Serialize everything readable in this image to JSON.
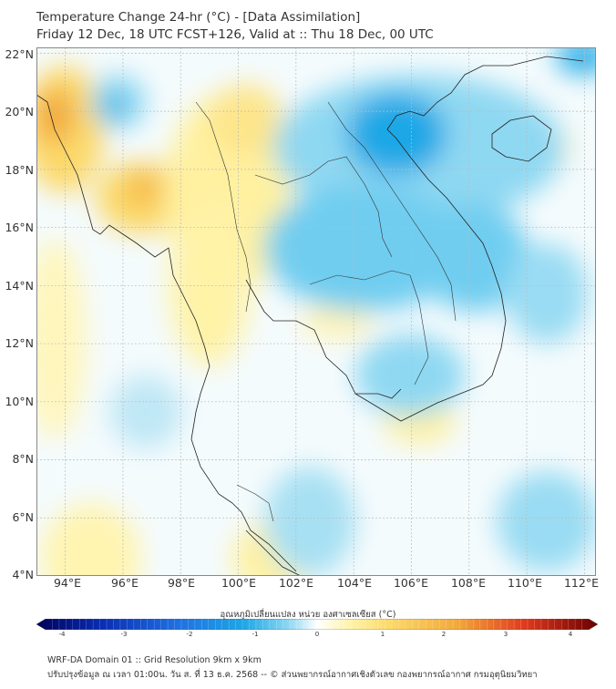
{
  "header": {
    "title_line1": "Temperature Change 24-hr (°C) - [Data Assimilation]",
    "title_line2": "Friday 12 Dec, 18 UTC FCST+126, Valid at :: Thu 18 Dec, 00 UTC"
  },
  "map": {
    "lat_labels": [
      "22°N",
      "20°N",
      "18°N",
      "16°N",
      "14°N",
      "12°N",
      "10°N",
      "8°N",
      "6°N",
      "4°N"
    ],
    "lon_labels": [
      "94°E",
      "96°E",
      "98°E",
      "100°E",
      "102°E",
      "104°E",
      "106°E",
      "108°E",
      "110°E",
      "112°E"
    ],
    "lat_range": [
      4,
      22.2
    ],
    "lon_range": [
      93,
      112.4
    ],
    "colors": {
      "cold": "#1ea7e6",
      "cool": "#7fd3f0",
      "neutral": "#f4fbfd",
      "warm": "#fff3a8",
      "hot": "#f2a93b",
      "coast": "#222222"
    }
  },
  "colorbar": {
    "title": "อุณหภูมิเปลี่ยนแปลง หน่วย องศาเซลเซียส (°C)",
    "ticks": [
      "-4",
      "-3",
      "-2",
      "-1",
      "0",
      "1",
      "2",
      "3",
      "4"
    ],
    "range": [
      -4,
      4
    ]
  },
  "footer": {
    "line1": "WRF-DA Domain 01 :: Grid Resolution 9km x 9km",
    "line2": "ปรับปรุงข้อมูล ณ เวลา 01:00น. วัน ส. ที่ 13 ธ.ค. 2568 -- © ส่วนพยากรณ์อากาศเชิงตัวเลข กองพยากรณ์อากาศ กรมอุตุนิยมวิทยา"
  }
}
